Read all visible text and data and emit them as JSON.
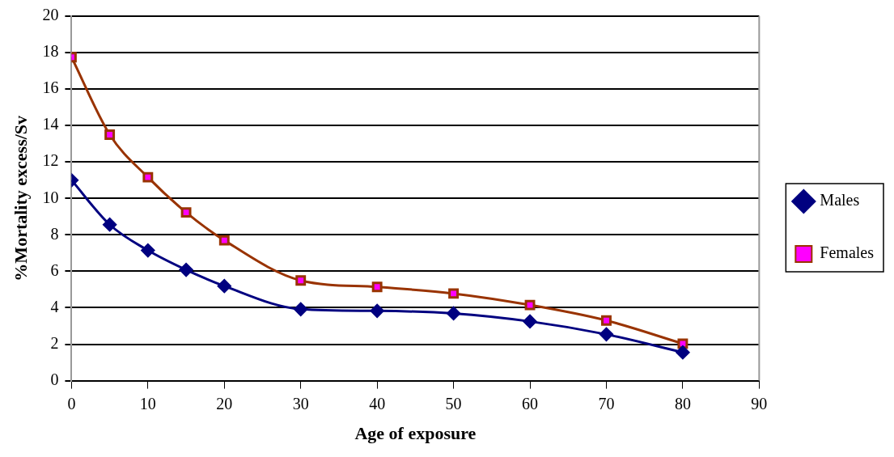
{
  "chart_data": {
    "type": "line",
    "xlabel": "Age of exposure",
    "ylabel": "%Mortality excess/Sv",
    "x": [
      0,
      5,
      10,
      15,
      20,
      30,
      40,
      50,
      60,
      70,
      80
    ],
    "series": [
      {
        "name": "Males",
        "color": "#000080",
        "marker": "diamond",
        "values": [
          11.0,
          8.56,
          7.15,
          6.08,
          5.19,
          3.92,
          3.83,
          3.69,
          3.25,
          2.54,
          1.55
        ]
      },
      {
        "name": "Females",
        "color": "#993300",
        "marker": "square",
        "colors": [
          "#ff00ff",
          "#ff00ff",
          "#ff00ff",
          "#ff00ff",
          "#ff00ff",
          "#ff00ff",
          "#ff00ff",
          "#ff00ff",
          "#ff00ff",
          "#ff00ff",
          "#ff00ff"
        ],
        "values": [
          17.75,
          13.5,
          11.16,
          9.23,
          7.7,
          5.5,
          5.14,
          4.78,
          4.15,
          3.3,
          2.03
        ]
      }
    ],
    "xlim": [
      0,
      90
    ],
    "xticks": [
      0,
      10,
      20,
      30,
      40,
      50,
      60,
      70,
      80,
      90
    ],
    "ylim": [
      0,
      20
    ],
    "yticks": [
      0,
      2,
      4,
      6,
      8,
      10,
      12,
      14,
      16,
      18,
      20
    ],
    "grid": "y",
    "legend": "right"
  }
}
